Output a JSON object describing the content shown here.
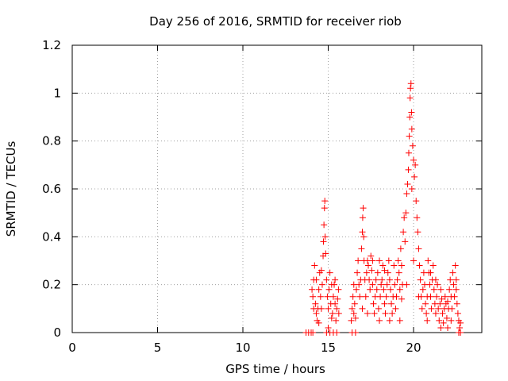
{
  "chart_data": {
    "type": "scatter",
    "title": "Day 256 of 2016, SRMTID for receiver riob",
    "xlabel": "GPS time / hours",
    "ylabel": "SRMTID / TECUs",
    "xlim": [
      0,
      24
    ],
    "ylim": [
      0,
      1.2
    ],
    "xticks": [
      0,
      5,
      10,
      15,
      20
    ],
    "xtick_labels": [
      "0",
      "5",
      "10",
      "15",
      "20"
    ],
    "yticks": [
      0,
      0.2,
      0.4,
      0.6,
      0.8,
      1.0,
      1.2
    ],
    "ytick_labels": [
      "0",
      "0.2",
      "0.4",
      "0.6",
      "0.8",
      "1",
      "1.2"
    ],
    "grid": true,
    "marker": "+",
    "series": [
      {
        "color": "#ff0000",
        "points": [
          [
            13.7,
            0.0
          ],
          [
            13.85,
            0.0
          ],
          [
            14.0,
            0.0
          ],
          [
            14.1,
            0.0
          ],
          [
            14.05,
            0.18
          ],
          [
            14.1,
            0.15
          ],
          [
            14.15,
            0.22
          ],
          [
            14.2,
            0.28
          ],
          [
            14.25,
            0.12
          ],
          [
            14.3,
            0.08
          ],
          [
            14.35,
            0.05
          ],
          [
            14.4,
            0.1
          ],
          [
            14.45,
            0.18
          ],
          [
            14.5,
            0.25
          ],
          [
            14.55,
            0.15
          ],
          [
            14.6,
            0.1
          ],
          [
            14.65,
            0.2
          ],
          [
            14.7,
            0.32
          ],
          [
            14.72,
            0.38
          ],
          [
            14.75,
            0.45
          ],
          [
            14.78,
            0.52
          ],
          [
            14.8,
            0.55
          ],
          [
            14.82,
            0.4
          ],
          [
            14.85,
            0.33
          ],
          [
            14.9,
            0.22
          ],
          [
            14.95,
            0.15
          ],
          [
            15.0,
            0.1
          ],
          [
            15.05,
            0.18
          ],
          [
            15.1,
            0.25
          ],
          [
            15.15,
            0.12
          ],
          [
            15.2,
            0.06
          ],
          [
            15.25,
            0.08
          ],
          [
            15.3,
            0.15
          ],
          [
            15.35,
            0.2
          ],
          [
            15.4,
            0.12
          ],
          [
            15.45,
            0.05
          ],
          [
            15.5,
            0.1
          ],
          [
            15.55,
            0.14
          ],
          [
            15.6,
            0.18
          ],
          [
            15.62,
            0.08
          ],
          [
            14.3,
            0.22
          ],
          [
            14.45,
            0.04
          ],
          [
            14.6,
            0.26
          ],
          [
            15.0,
            0.02
          ],
          [
            15.2,
            0.2
          ],
          [
            15.4,
            0.22
          ],
          [
            14.15,
            0.1
          ],
          [
            14.9,
            0.0
          ],
          [
            15.1,
            0.0
          ],
          [
            15.3,
            0.0
          ],
          [
            15.5,
            0.0
          ],
          [
            16.4,
            0.0
          ],
          [
            16.6,
            0.0
          ],
          [
            16.35,
            0.05
          ],
          [
            16.4,
            0.1
          ],
          [
            16.45,
            0.15
          ],
          [
            16.5,
            0.08
          ],
          [
            16.55,
            0.12
          ],
          [
            16.6,
            0.06
          ],
          [
            16.65,
            0.18
          ],
          [
            16.7,
            0.25
          ],
          [
            16.75,
            0.3
          ],
          [
            16.8,
            0.2
          ],
          [
            16.85,
            0.15
          ],
          [
            16.9,
            0.22
          ],
          [
            16.95,
            0.35
          ],
          [
            17.0,
            0.42
          ],
          [
            17.02,
            0.48
          ],
          [
            17.05,
            0.52
          ],
          [
            17.08,
            0.4
          ],
          [
            17.1,
            0.3
          ],
          [
            17.15,
            0.22
          ],
          [
            17.2,
            0.15
          ],
          [
            17.25,
            0.25
          ],
          [
            17.3,
            0.3
          ],
          [
            17.35,
            0.28
          ],
          [
            17.4,
            0.22
          ],
          [
            17.45,
            0.18
          ],
          [
            17.5,
            0.32
          ],
          [
            17.55,
            0.26
          ],
          [
            17.6,
            0.2
          ],
          [
            17.65,
            0.12
          ],
          [
            17.7,
            0.08
          ],
          [
            17.75,
            0.15
          ],
          [
            17.8,
            0.22
          ],
          [
            17.85,
            0.18
          ],
          [
            17.9,
            0.25
          ],
          [
            17.95,
            0.1
          ],
          [
            18.0,
            0.05
          ],
          [
            18.05,
            0.15
          ],
          [
            18.1,
            0.2
          ],
          [
            18.15,
            0.22
          ],
          [
            18.2,
            0.28
          ],
          [
            18.25,
            0.18
          ],
          [
            18.3,
            0.12
          ],
          [
            18.35,
            0.08
          ],
          [
            18.4,
            0.15
          ],
          [
            18.45,
            0.2
          ],
          [
            18.5,
            0.25
          ],
          [
            18.55,
            0.3
          ],
          [
            18.6,
            0.22
          ],
          [
            18.65,
            0.18
          ],
          [
            18.7,
            0.12
          ],
          [
            18.75,
            0.08
          ],
          [
            18.8,
            0.15
          ],
          [
            18.85,
            0.28
          ],
          [
            18.9,
            0.2
          ],
          [
            18.95,
            0.1
          ],
          [
            19.0,
            0.15
          ],
          [
            19.05,
            0.22
          ],
          [
            19.1,
            0.3
          ],
          [
            19.15,
            0.25
          ],
          [
            19.2,
            0.18
          ],
          [
            19.25,
            0.35
          ],
          [
            19.3,
            0.28
          ],
          [
            19.35,
            0.2
          ],
          [
            19.4,
            0.42
          ],
          [
            19.45,
            0.48
          ],
          [
            19.5,
            0.38
          ],
          [
            19.55,
            0.5
          ],
          [
            19.6,
            0.58
          ],
          [
            19.65,
            0.62
          ],
          [
            19.7,
            0.68
          ],
          [
            19.72,
            0.75
          ],
          [
            19.75,
            0.82
          ],
          [
            19.78,
            0.9
          ],
          [
            19.8,
            0.98
          ],
          [
            19.82,
            1.02
          ],
          [
            19.85,
            1.04
          ],
          [
            19.88,
            0.92
          ],
          [
            19.9,
            0.85
          ],
          [
            19.95,
            0.78
          ],
          [
            20.0,
            0.72
          ],
          [
            20.05,
            0.65
          ],
          [
            20.1,
            0.7
          ],
          [
            20.15,
            0.55
          ],
          [
            20.2,
            0.48
          ],
          [
            20.25,
            0.42
          ],
          [
            20.3,
            0.35
          ],
          [
            20.35,
            0.28
          ],
          [
            20.4,
            0.22
          ],
          [
            20.45,
            0.15
          ],
          [
            20.5,
            0.1
          ],
          [
            20.55,
            0.18
          ],
          [
            20.6,
            0.25
          ],
          [
            20.65,
            0.2
          ],
          [
            20.7,
            0.12
          ],
          [
            20.75,
            0.08
          ],
          [
            20.8,
            0.15
          ],
          [
            20.85,
            0.3
          ],
          [
            20.9,
            0.25
          ],
          [
            20.95,
            0.2
          ],
          [
            21.0,
            0.15
          ],
          [
            21.05,
            0.1
          ],
          [
            21.1,
            0.22
          ],
          [
            21.15,
            0.28
          ],
          [
            21.2,
            0.18
          ],
          [
            21.25,
            0.12
          ],
          [
            21.3,
            0.08
          ],
          [
            21.35,
            0.15
          ],
          [
            21.4,
            0.2
          ],
          [
            21.45,
            0.1
          ],
          [
            21.5,
            0.05
          ],
          [
            21.55,
            0.12
          ],
          [
            21.6,
            0.18
          ],
          [
            21.65,
            0.14
          ],
          [
            21.7,
            0.08
          ],
          [
            21.75,
            0.04
          ],
          [
            21.8,
            0.1
          ],
          [
            21.85,
            0.15
          ],
          [
            21.9,
            0.12
          ],
          [
            21.95,
            0.06
          ],
          [
            22.0,
            0.02
          ],
          [
            22.05,
            0.1
          ],
          [
            22.1,
            0.18
          ],
          [
            22.15,
            0.22
          ],
          [
            22.2,
            0.15
          ],
          [
            22.25,
            0.1
          ],
          [
            22.3,
            0.25
          ],
          [
            22.35,
            0.2
          ],
          [
            22.4,
            0.15
          ],
          [
            22.45,
            0.28
          ],
          [
            22.5,
            0.22
          ],
          [
            22.55,
            0.12
          ],
          [
            22.6,
            0.08
          ],
          [
            22.65,
            0.05
          ],
          [
            22.7,
            0.02
          ],
          [
            22.75,
            0.04
          ],
          [
            22.65,
            0.0
          ],
          [
            22.75,
            0.0
          ],
          [
            16.5,
            0.2
          ],
          [
            17.0,
            0.1
          ],
          [
            17.3,
            0.08
          ],
          [
            18.0,
            0.3
          ],
          [
            18.6,
            0.05
          ],
          [
            19.2,
            0.05
          ],
          [
            19.6,
            0.2
          ],
          [
            20.0,
            0.3
          ],
          [
            20.3,
            0.15
          ],
          [
            21.0,
            0.25
          ],
          [
            21.6,
            0.02
          ],
          [
            22.2,
            0.05
          ],
          [
            22.5,
            0.18
          ],
          [
            18.3,
            0.26
          ],
          [
            19.3,
            0.14
          ],
          [
            20.8,
            0.05
          ],
          [
            21.3,
            0.22
          ],
          [
            22.0,
            0.13
          ],
          [
            17.6,
            0.3
          ],
          [
            19.9,
            0.6
          ]
        ]
      }
    ]
  }
}
